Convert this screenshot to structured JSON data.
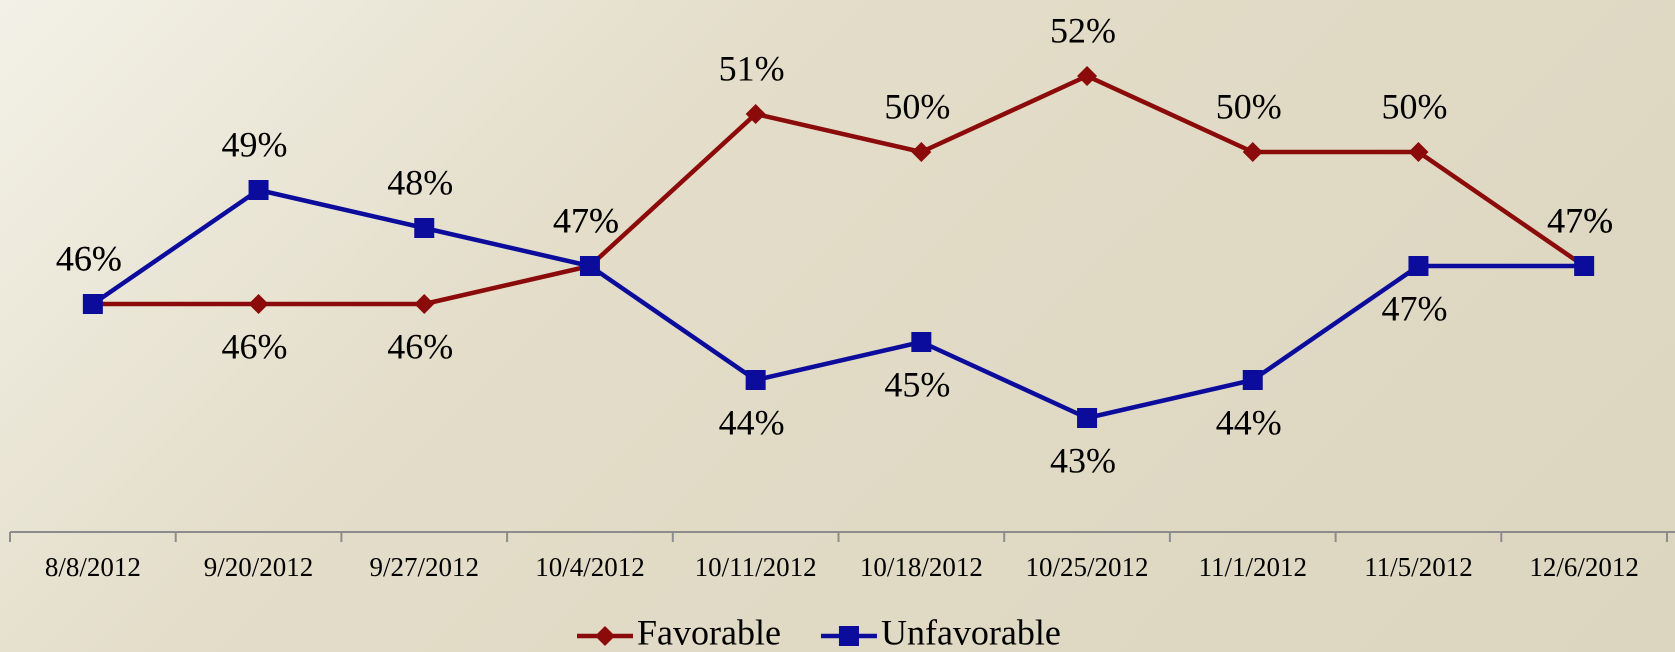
{
  "chart_data": {
    "type": "line",
    "categories": [
      "8/8/2012",
      "9/20/2012",
      "9/27/2012",
      "10/4/2012",
      "10/11/2012",
      "10/18/2012",
      "10/25/2012",
      "11/1/2012",
      "11/5/2012",
      "12/6/2012"
    ],
    "series": [
      {
        "name": "Favorable",
        "color": "#8b0a0a",
        "marker": "diamond",
        "values": [
          46,
          46,
          46,
          47,
          51,
          50,
          52,
          50,
          50,
          47
        ],
        "value_labels": [
          "46%",
          "46%",
          "46%",
          "47%",
          "51%",
          "50%",
          "52%",
          "50%",
          "50%",
          "47%"
        ]
      },
      {
        "name": "Unfavorable",
        "color": "#0c0c9c",
        "marker": "square",
        "values": [
          46,
          49,
          48,
          47,
          44,
          45,
          43,
          44,
          47,
          47
        ],
        "value_labels": [
          "46%",
          "49%",
          "48%",
          "47%",
          "44%",
          "45%",
          "43%",
          "44%",
          "47%",
          "47%"
        ]
      }
    ],
    "ylim": [
      40,
      54
    ],
    "legend": "bottom"
  }
}
